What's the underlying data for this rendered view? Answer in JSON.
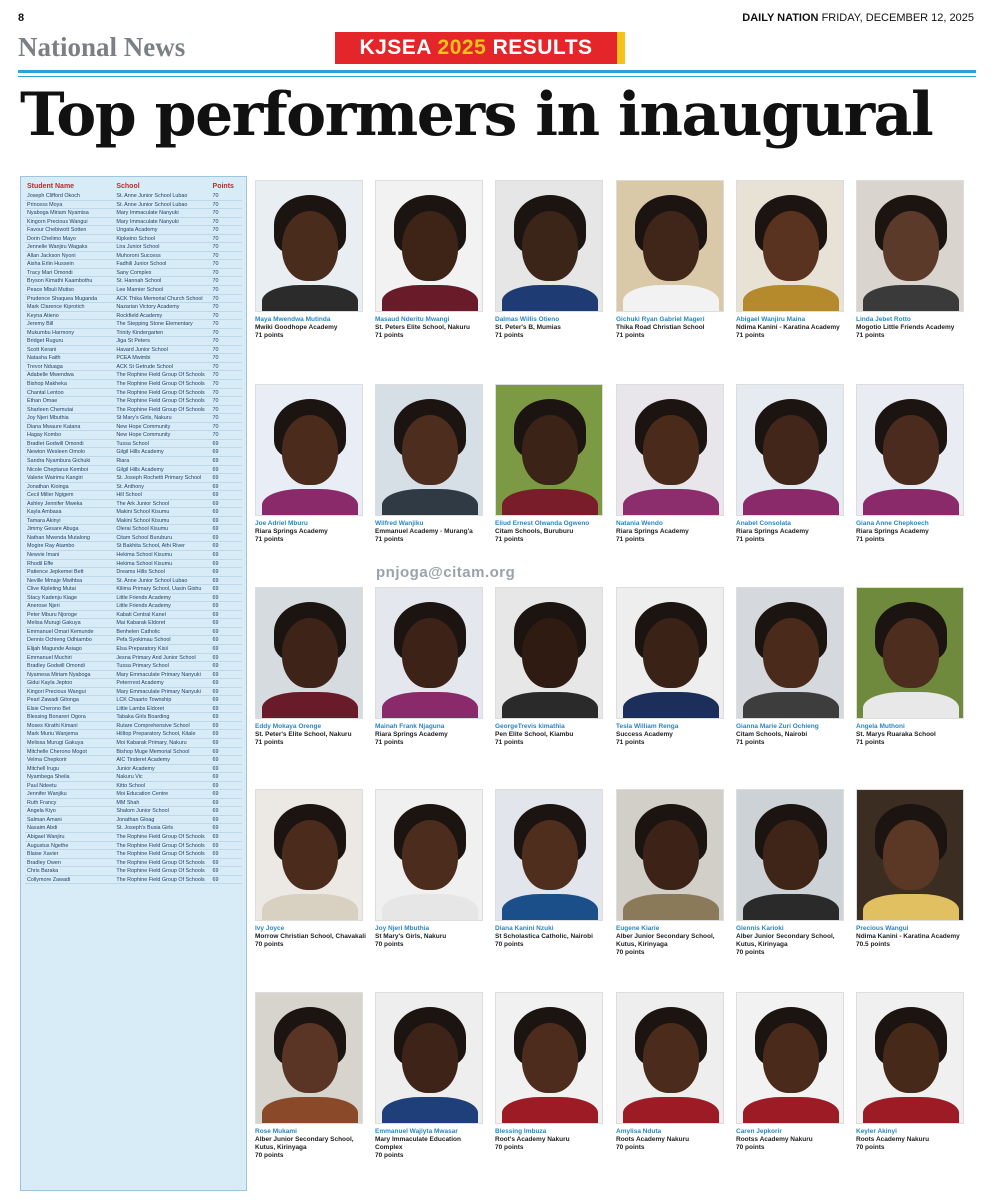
{
  "header": {
    "page_number": "8",
    "paper": "DAILY NATION",
    "date": "FRIDAY, DECEMBER 12, 2025",
    "section": "National News",
    "banner_text": "KJSEA ",
    "banner_year": "2025",
    "banner_suffix": " RESULTS",
    "headline": "Top performers in inaugural"
  },
  "watermark": "pnjoga@citam.org",
  "table": {
    "headers": [
      "Student Name",
      "School",
      "Points"
    ],
    "rows": [
      [
        "Joseph Clifford Okoch",
        "St. Anne Junior School Lubao",
        "70"
      ],
      [
        "Princess Moya",
        "St. Anne Junior School Lubao",
        "70"
      ],
      [
        "Nyaboga Miriam Nyamisa",
        "Mary Immaculate Nanyuki",
        "70"
      ],
      [
        "Kingorn Precious Wangui",
        "Mary Immaculate Nanyuki",
        "70"
      ],
      [
        "Favour Chebiwott Sotten",
        "Ungata Academy",
        "70"
      ],
      [
        "Dorin Chelimo Mayo",
        "Kipkeino School",
        "70"
      ],
      [
        "Jennelle Wanjiru Wagaks",
        "Lira Junior School",
        "70"
      ],
      [
        "Allan Jackson Nyoni",
        "Muhoroni Success",
        "70"
      ],
      [
        "Aisha Erlin Hussein",
        "Fadhili Junior School",
        "70"
      ],
      [
        "Tracy Mari Omondi",
        "Sany Complex",
        "70"
      ],
      [
        "Bryson Kimathi Kaambothu",
        "St. Hannah School",
        "70"
      ],
      [
        "Peace Mbuli Mutiso",
        "Lee Marnier School",
        "70"
      ],
      [
        "Prudence Shaquea Muganda",
        "ACK Thika Memorial Church School",
        "70"
      ],
      [
        "Mark Clarence Kiprotich",
        "Nazarian Victory Academy",
        "70"
      ],
      [
        "Keyna Atieno",
        "Rockfield Academy",
        "70"
      ],
      [
        "Jeremy Bill",
        "The Stepping Stone Elementary",
        "70"
      ],
      [
        "Mukumbu Harmony",
        "Trinity Kindergarten",
        "70"
      ],
      [
        "Bridget Ruguru",
        "Jiga St Peters",
        "70"
      ],
      [
        "Scott Kerani",
        "Havard Junior School",
        "70"
      ],
      [
        "Natasha Faith",
        "PCEA Mwimbi",
        "70"
      ],
      [
        "Trevor Nduaga",
        "ACK St Getrude School",
        "70"
      ],
      [
        "Adabelle Mwendwa",
        "The Rophine Field Group Of Schools",
        "70"
      ],
      [
        "Bishop Makheka",
        "The Rophine Field Group Of Schools",
        "70"
      ],
      [
        "Chantal Lentoo",
        "The Rophine Field Group Of Schools",
        "70"
      ],
      [
        "Ethan Omae",
        "The Rophine Field Group Of Schools",
        "70"
      ],
      [
        "Sharleen Chemutai",
        "The Rophine Field Group Of Schools",
        "70"
      ],
      [
        "Joy Njeri Mbuthia",
        "St Mary's Girls, Nakuru",
        "70"
      ],
      [
        "Diana Mwaure Katana",
        "New Hope Community",
        "70"
      ],
      [
        "Hagay Kombo",
        "New Hope Community",
        "70"
      ],
      [
        "Bradlet Godwill Omondi",
        "Tussa School",
        "69"
      ],
      [
        "Newton Wesleen Omolo",
        "Gilgil Hills Academy",
        "69"
      ],
      [
        "Sandra Nyambura Gichuki",
        "Riara",
        "69"
      ],
      [
        "Nicole Cheptarus Kemboi",
        "Gilgil Hills Academy",
        "69"
      ],
      [
        "Valerie Wairimu Kangiri",
        "St. Joseph Rochetti Primary School",
        "69"
      ],
      [
        "Jonathan Kioinga",
        "St. Anthony",
        "69"
      ],
      [
        "Cecil Miller Ngigem",
        "Hill School",
        "69"
      ],
      [
        "Ashley Jennifer Mweka",
        "The Ark Junior School",
        "69"
      ],
      [
        "Kayla Ambasa",
        "Makini School Kisumu",
        "69"
      ],
      [
        "Tamara Akinyi",
        "Makini School Kisumu",
        "69"
      ],
      [
        "Jimmy Gesare Abuga",
        "Olerai School Kisumu",
        "69"
      ],
      [
        "Nathan Mwenda Mutalong",
        "Citam School Buruburu",
        "69"
      ],
      [
        "Mogire Ray Atambo",
        "St Bakhita School, Athi River",
        "69"
      ],
      [
        "Newvie Imani",
        "Hekima School Kisumu",
        "69"
      ],
      [
        "Rhodil Effe",
        "Hekima School Kisumu",
        "69"
      ],
      [
        "Patience Jepkemei Bett",
        "Dreams Hills School",
        "69"
      ],
      [
        "Neville Mmaje Mwihtsa",
        "St. Anne Junior School Lubao",
        "69"
      ],
      [
        "Clive Kipleting Mutai",
        "Kilima Primary School, Uasin Gishu",
        "69"
      ],
      [
        "Stacy Kadenju Kiage",
        "Little Friends Academy",
        "69"
      ],
      [
        "Anerose Njeri",
        "Little Friends Academy",
        "69"
      ],
      [
        "Peter Mburu Njoroge",
        "Kabati Central Kanel",
        "69"
      ],
      [
        "Melisa Murugi Gakuya",
        "Mai Kabarak Eldoret",
        "69"
      ],
      [
        "Emmanuel Omari Kemunde",
        "Benhelen Catholic",
        "69"
      ],
      [
        "Dennis Ochieng Odhiambo",
        "Pefa Syokimau School",
        "69"
      ],
      [
        "Elijah Magunde Asiago",
        "Elsa Preparatory Kisii",
        "69"
      ],
      [
        "Emmanuel Muchiri",
        "Jesna Primary And Junior School",
        "69"
      ],
      [
        "Bradley Godwill Omondi",
        "Tussa Primary School",
        "69"
      ],
      [
        "Nyamesa Miriam Nyaboga",
        "Mary Emmaculate Primary Nanyuki",
        "69"
      ],
      [
        "Gidui Kayla Jeptoo",
        "Peterrrest Academy",
        "69"
      ],
      [
        "Kingori Precious Wangui",
        "Mary Emmaculate Primary Nanyuki",
        "69"
      ],
      [
        "Pearl Zawadi Gitonga",
        "LCK Chaarto Township",
        "69"
      ],
      [
        "Elsie Cherono Bet",
        "Little Lambs Eldoret",
        "69"
      ],
      [
        "Blessing Bonareri Ogora",
        "Tabaka Girls Boarding",
        "69"
      ],
      [
        "Moses Kirathi Kimani",
        "Rutare Comprehensive School",
        "69"
      ],
      [
        "Mark Muriu Wanjema",
        "Hilltop Preparatory School, Kitale",
        "69"
      ],
      [
        "Melissa Murugi Gakuya",
        "Moi Kabarak Primary, Nakuru",
        "69"
      ],
      [
        "Mitchelle Cherono Mogot",
        "Bishop Muge Memorial School",
        "69"
      ],
      [
        "Velma Chepkorir",
        "AIC Tinderet Academy",
        "69"
      ],
      [
        "Mitchell Irugu",
        "Junior Academy",
        "69"
      ],
      [
        "Nyambega Sheila",
        "Nakuru Vic",
        "69"
      ],
      [
        "Paul Ndeetu",
        "Kitto School",
        "69"
      ],
      [
        "Jennifer Wanjiku",
        "Moi Education Centre",
        "69"
      ],
      [
        "Ruth Francy",
        "MM Shah",
        "69"
      ],
      [
        "Angela Kiyo",
        "Shalom Junior School",
        "69"
      ],
      [
        "Salman Amani",
        "Jonathan Gloag",
        "69"
      ],
      [
        "Nasaim Abdi",
        "St. Joseph's Busia Girls",
        "69"
      ],
      [
        "Abigael Wanjiru",
        "The Rophine Field Group Of Schools",
        "69"
      ],
      [
        "Augustus Ngethe",
        "The Rophine Field Group Of Schools",
        "69"
      ],
      [
        "Blaise Xavier",
        "The Rophine Field Group Of Schools",
        "69"
      ],
      [
        "Bradley Owen",
        "The Rophine Field Group Of Schools",
        "69"
      ],
      [
        "Chris Baraka",
        "The Rophine Field Group Of Schools",
        "69"
      ],
      [
        "Collymore Zawadi",
        "The Rophine Field Group Of Schools",
        "69"
      ]
    ]
  },
  "students": [
    {
      "name": "Maya Mwendwa Mutinda",
      "school": "Mwiki Goodhope Academy",
      "points": "71 points",
      "bg": "#e9eef3",
      "skin": "#4a2c1d",
      "body": "#2b2b2b"
    },
    {
      "name": "Masaud Nderitu Mwangi",
      "school": "St. Peters Elite School, Nakuru",
      "points": "71 points",
      "bg": "#f2f2f2",
      "skin": "#3d2417",
      "body": "#6a1b2a"
    },
    {
      "name": "Dalmas Willis Otieno",
      "school": "St. Peter's B, Mumias",
      "points": "71 points",
      "bg": "#e6e6e6",
      "skin": "#3b2418",
      "body": "#1f3b73"
    },
    {
      "name": "Gichuki Ryan Gabriel Mageri",
      "school": "Thika Road Christian School",
      "points": "71 points",
      "bg": "#d9c9a8",
      "skin": "#3f2619",
      "body": "#f2f2f2"
    },
    {
      "name": "Abigael Wanjiru Maina",
      "school": "Ndima Kanini - Karatina Academy",
      "points": "71 points",
      "bg": "#e8e2d6",
      "skin": "#5a3320",
      "body": "#b48a2c"
    },
    {
      "name": "Linda Jebet Rotto",
      "school": "Mogotio Little Friends Academy",
      "points": "71 points",
      "bg": "#d9d4cd",
      "skin": "#5b3a29",
      "body": "#3a3a3a"
    },
    {
      "name": "Joe Adriel Mburu",
      "school": "Riara Springs Academy",
      "points": "71 points",
      "bg": "#e9eef6",
      "skin": "#4b2b1c",
      "body": "#8a2a6b"
    },
    {
      "name": "Wilfred Wanjiku",
      "school": "Emmanuel Academy - Murang'a",
      "points": "71 points",
      "bg": "#d7dfe6",
      "skin": "#4c2d1e",
      "body": "#2f3a44"
    },
    {
      "name": "Eliud Ernest Olwanda Ogweno",
      "school": "Citam Schools, Buruburu",
      "points": "71 points",
      "bg": "#7c9a43",
      "skin": "#3b2317",
      "body": "#7a1d2a"
    },
    {
      "name": "Natania Wendo",
      "school": "Riara Springs Academy",
      "points": "71 points",
      "bg": "#e8e6ea",
      "skin": "#4a2a1b",
      "body": "#8c2d6e"
    },
    {
      "name": "Anabel Consolata",
      "school": "Riara Springs Academy",
      "points": "71 points",
      "bg": "#e6ebf2",
      "skin": "#42261a",
      "body": "#8a2a6b"
    },
    {
      "name": "Giana Anne Chepkoech",
      "school": "Riara Springs Academy",
      "points": "71 points",
      "bg": "#e9ecf2",
      "skin": "#4a2b1d",
      "body": "#8a2a6b"
    },
    {
      "name": "Eddy Mokaya Orenge",
      "school": "St. Peter's Elite School, Nakuru",
      "points": "71 points",
      "bg": "#d6dbe0",
      "skin": "#3e2418",
      "body": "#6a1b2a"
    },
    {
      "name": "Mainah Frank Njaguna",
      "school": "Riara Springs Academy",
      "points": "71 points",
      "bg": "#e4e8ee",
      "skin": "#3d2317",
      "body": "#8a2a6b"
    },
    {
      "name": "GeorgeTrevis kimathia",
      "school": "Pen Elite School, Kiambu",
      "points": "71 points",
      "bg": "#e7e7e7",
      "skin": "#2f1b12",
      "body": "#2a2a2a"
    },
    {
      "name": "Tesla William Renga",
      "school": "Success Academy",
      "points": "71 points",
      "bg": "#eeeeee",
      "skin": "#3a2216",
      "body": "#1b2f5a"
    },
    {
      "name": "Gianna Marie Zuri Ochieng",
      "school": "Citam Schools, Nairobi",
      "points": "71 points",
      "bg": "#d5d9dd",
      "skin": "#4a2a1b",
      "body": "#3d3d3d"
    },
    {
      "name": "Angela Muthoni",
      "school": "St. Marys Ruaraka School",
      "points": "71 points",
      "bg": "#6f8a3c",
      "skin": "#4d2d1d",
      "body": "#e8e8e8"
    },
    {
      "name": "Ivy Joyce",
      "school": "Morrow Christian School, Chavakali",
      "points": "70 points",
      "bg": "#ece9e4",
      "skin": "#4a2b1c",
      "body": "#d8d0c0"
    },
    {
      "name": "Joy Njeri Mbuthia",
      "school": "St Mary's Girls, Nakuru",
      "points": "70 points",
      "bg": "#f0f0f0",
      "skin": "#4b2c1d",
      "body": "#e6e6e6"
    },
    {
      "name": "Diana Kanini Nzuki",
      "school": "St Scholastica Catholic, Nairobi",
      "points": "70 points",
      "bg": "#e2e6ec",
      "skin": "#4f2e1e",
      "body": "#1a4f8a"
    },
    {
      "name": "Eugene Kiarie",
      "school": "Alber Junior Secondary School, Kutus, Kirinyaga",
      "points": "70 points",
      "bg": "#d2cfc8",
      "skin": "#3d2317",
      "body": "#8a7a5a"
    },
    {
      "name": "Glennis Karioki",
      "school": "Alber Junior Secondary School, Kutus, Kirinyaga",
      "points": "70 points",
      "bg": "#cdd2d6",
      "skin": "#3f2518",
      "body": "#2a2a2a"
    },
    {
      "name": "Precious Wangui",
      "school": "Ndima Kanini - Karatina Academy",
      "points": "70.5 points",
      "bg": "#3b2d22",
      "skin": "#5b3825",
      "body": "#e0c060"
    },
    {
      "name": "Rose Mukami",
      "school": "Alber Junior Secondary School, Kutus, Kirinyaga",
      "points": "70 points",
      "bg": "#d7d3cd",
      "skin": "#5a3424",
      "body": "#8a4a2a"
    },
    {
      "name": "Emmanuel Wajiyta Mwasar",
      "school": "Mary Immaculate Education Complex",
      "points": "70 points",
      "bg": "#eeeeee",
      "skin": "#3e2418",
      "body": "#1e3f7a"
    },
    {
      "name": "Blessing Imbuza",
      "school": "Root's Academy Nakuru",
      "points": "70 points",
      "bg": "#f1f1f1",
      "skin": "#4d2c1d",
      "body": "#9c1b24"
    },
    {
      "name": "Amylisa Nduta",
      "school": "Roots Academy Nakuru",
      "points": "70 points",
      "bg": "#eeeeee",
      "skin": "#4b2b1c",
      "body": "#9c1b24"
    },
    {
      "name": "Caren Jepkorir",
      "school": "Rootss Academy Nakuru",
      "points": "70 points",
      "bg": "#f2f2f2",
      "skin": "#4a2a1b",
      "body": "#9c1b24"
    },
    {
      "name": "Keyler Akinyi",
      "school": "Roots Academy Nakuru",
      "points": "70 points",
      "bg": "#f0f0f0",
      "skin": "#47291a",
      "body": "#9c1b24"
    }
  ]
}
